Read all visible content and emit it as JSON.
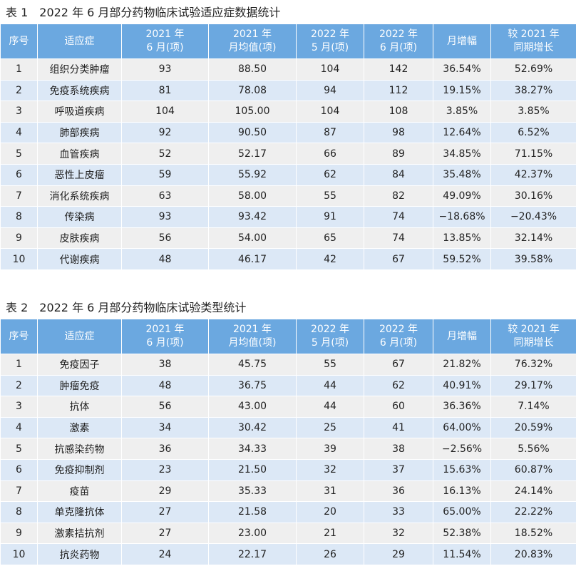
{
  "tables": [
    {
      "title": "表 1　2022 年 6 月部分药物临床试验适应症数据统计",
      "header": [
        [
          "序号"
        ],
        [
          "适应症"
        ],
        [
          "2021 年",
          "6 月(项)"
        ],
        [
          "2021 年",
          "月均值(项)"
        ],
        [
          "2022 年",
          "5 月(项)"
        ],
        [
          "2022 年",
          "6 月(项)"
        ],
        [
          "月增幅"
        ],
        [
          "较 2021 年",
          "同期增长"
        ]
      ],
      "rows": [
        [
          "1",
          "组织分类肿瘤",
          "93",
          "88.50",
          "104",
          "142",
          "36.54%",
          "52.69%"
        ],
        [
          "2",
          "免疫系统疾病",
          "81",
          "78.08",
          "94",
          "112",
          "19.15%",
          "38.27%"
        ],
        [
          "3",
          "呼吸道疾病",
          "104",
          "105.00",
          "104",
          "108",
          "3.85%",
          "3.85%"
        ],
        [
          "4",
          "肺部疾病",
          "92",
          "90.50",
          "87",
          "98",
          "12.64%",
          "6.52%"
        ],
        [
          "5",
          "血管疾病",
          "52",
          "52.17",
          "66",
          "89",
          "34.85%",
          "71.15%"
        ],
        [
          "6",
          "恶性上皮瘤",
          "59",
          "55.92",
          "62",
          "84",
          "35.48%",
          "42.37%"
        ],
        [
          "7",
          "消化系统疾病",
          "63",
          "58.00",
          "55",
          "82",
          "49.09%",
          "30.16%"
        ],
        [
          "8",
          "传染病",
          "93",
          "93.42",
          "91",
          "74",
          "−18.68%",
          "−20.43%"
        ],
        [
          "9",
          "皮肤疾病",
          "56",
          "54.00",
          "65",
          "74",
          "13.85%",
          "32.14%"
        ],
        [
          "10",
          "代谢疾病",
          "48",
          "46.17",
          "42",
          "67",
          "59.52%",
          "39.58%"
        ]
      ]
    },
    {
      "title": "表 2　2022 年 6 月部分药物临床试验类型统计",
      "header": [
        [
          "序号"
        ],
        [
          "适应症"
        ],
        [
          "2021 年",
          "6 月(项)"
        ],
        [
          "2021 年",
          "月均值(项)"
        ],
        [
          "2022 年",
          "5 月(项)"
        ],
        [
          "2022 年",
          "6 月(项)"
        ],
        [
          "月增幅"
        ],
        [
          "较 2021 年",
          "同期增长"
        ]
      ],
      "rows": [
        [
          "1",
          "免疫因子",
          "38",
          "45.75",
          "55",
          "67",
          "21.82%",
          "76.32%"
        ],
        [
          "2",
          "肿瘤免疫",
          "48",
          "36.75",
          "44",
          "62",
          "40.91%",
          "29.17%"
        ],
        [
          "3",
          "抗体",
          "56",
          "43.00",
          "44",
          "60",
          "36.36%",
          "7.14%"
        ],
        [
          "4",
          "激素",
          "34",
          "30.42",
          "25",
          "41",
          "64.00%",
          "20.59%"
        ],
        [
          "5",
          "抗感染药物",
          "36",
          "34.33",
          "39",
          "38",
          "−2.56%",
          "5.56%"
        ],
        [
          "6",
          "免疫抑制剂",
          "23",
          "21.50",
          "32",
          "37",
          "15.63%",
          "60.87%"
        ],
        [
          "7",
          "疫苗",
          "29",
          "35.33",
          "31",
          "36",
          "16.13%",
          "24.14%"
        ],
        [
          "8",
          "单克隆抗体",
          "27",
          "21.58",
          "20",
          "33",
          "65.00%",
          "22.22%"
        ],
        [
          "9",
          "激素拮抗剂",
          "27",
          "23.00",
          "21",
          "32",
          "52.38%",
          "18.52%"
        ],
        [
          "10",
          "抗炎药物",
          "24",
          "22.17",
          "26",
          "29",
          "11.54%",
          "20.83%"
        ]
      ]
    }
  ]
}
